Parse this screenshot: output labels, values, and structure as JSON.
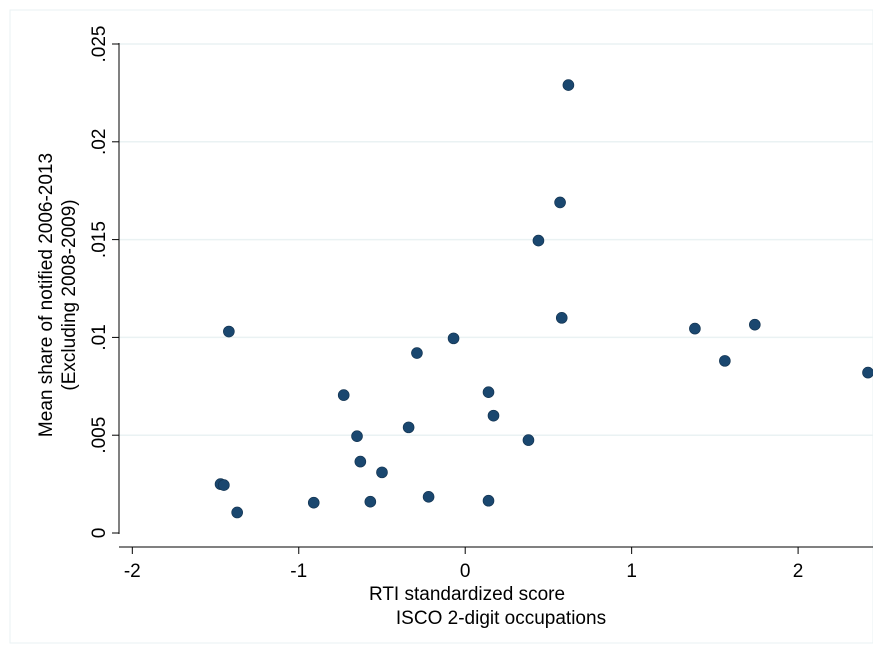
{
  "chart_data": {
    "type": "scatter",
    "xlabel_lines": [
      "RTI standardized score",
      "ISCO 2-digit occupations"
    ],
    "ylabel_lines": [
      "Mean share of notified 2006-2013",
      "(Excluding 2008-2009)"
    ],
    "xlim": [
      -2.08,
      2.42
    ],
    "ylim": [
      0,
      0.025
    ],
    "x_ticks": [
      {
        "value": -2,
        "label": "-2"
      },
      {
        "value": -1,
        "label": "-1"
      },
      {
        "value": 0,
        "label": "0"
      },
      {
        "value": 1,
        "label": "1"
      },
      {
        "value": 2,
        "label": "2"
      }
    ],
    "y_ticks": [
      {
        "value": 0,
        "label": "0"
      },
      {
        "value": 0.005,
        "label": ".005"
      },
      {
        "value": 0.01,
        "label": ".01"
      },
      {
        "value": 0.015,
        "label": ".015"
      },
      {
        "value": 0.02,
        "label": ".02"
      },
      {
        "value": 0.025,
        "label": ".025"
      }
    ],
    "grid": true,
    "marker_color": "#1a476f",
    "points": [
      {
        "x": -1.42,
        "y": 0.0103
      },
      {
        "x": -1.47,
        "y": 0.0025
      },
      {
        "x": -1.45,
        "y": 0.00245
      },
      {
        "x": -1.37,
        "y": 0.00105
      },
      {
        "x": -0.91,
        "y": 0.00155
      },
      {
        "x": -0.73,
        "y": 0.00705
      },
      {
        "x": -0.65,
        "y": 0.00495
      },
      {
        "x": -0.63,
        "y": 0.00365
      },
      {
        "x": -0.57,
        "y": 0.0016
      },
      {
        "x": -0.5,
        "y": 0.0031
      },
      {
        "x": -0.34,
        "y": 0.0054
      },
      {
        "x": -0.29,
        "y": 0.0092
      },
      {
        "x": -0.22,
        "y": 0.00185
      },
      {
        "x": -0.07,
        "y": 0.00995
      },
      {
        "x": 0.14,
        "y": 0.0072
      },
      {
        "x": 0.17,
        "y": 0.006
      },
      {
        "x": 0.14,
        "y": 0.00165
      },
      {
        "x": 0.38,
        "y": 0.00475
      },
      {
        "x": 0.44,
        "y": 0.01495
      },
      {
        "x": 0.57,
        "y": 0.0169
      },
      {
        "x": 0.58,
        "y": 0.011
      },
      {
        "x": 0.62,
        "y": 0.0229
      },
      {
        "x": 1.38,
        "y": 0.01045
      },
      {
        "x": 1.56,
        "y": 0.0088
      },
      {
        "x": 1.74,
        "y": 0.01065
      },
      {
        "x": 2.42,
        "y": 0.0082
      }
    ]
  }
}
